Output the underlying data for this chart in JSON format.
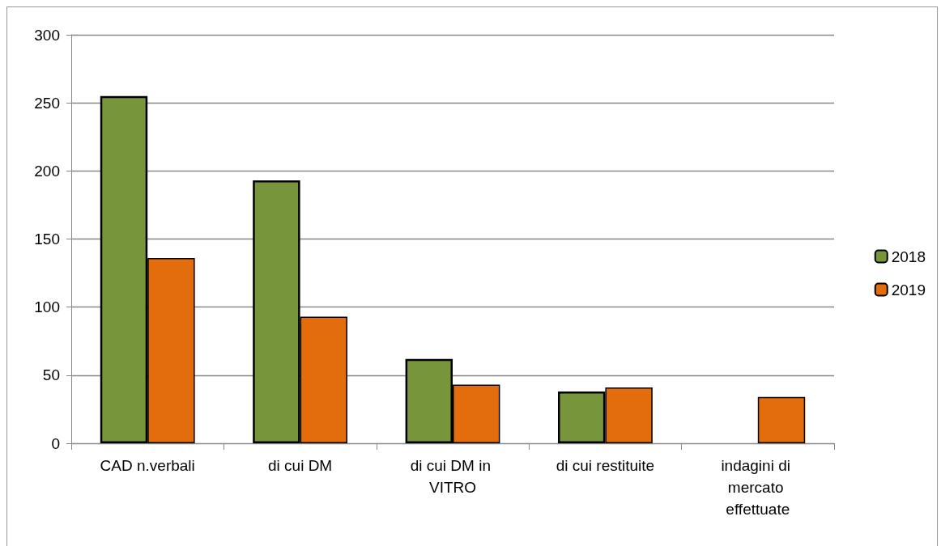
{
  "chart_data": {
    "type": "bar",
    "categories": [
      "CAD n.verbali",
      "di cui DM",
      "di cui DM in VITRO",
      "di cui restituite",
      "indagini di mercato effettuate"
    ],
    "series": [
      {
        "name": "2018",
        "color": "#77963c",
        "values": [
          255,
          193,
          62,
          38,
          null
        ]
      },
      {
        "name": "2019",
        "color": "#e36c0c",
        "values": [
          136,
          93,
          43,
          41,
          34
        ]
      }
    ],
    "ylim": [
      0,
      300
    ],
    "yticks": [
      0,
      50,
      100,
      150,
      200,
      250,
      300
    ],
    "grid": "y",
    "legend": "right"
  }
}
